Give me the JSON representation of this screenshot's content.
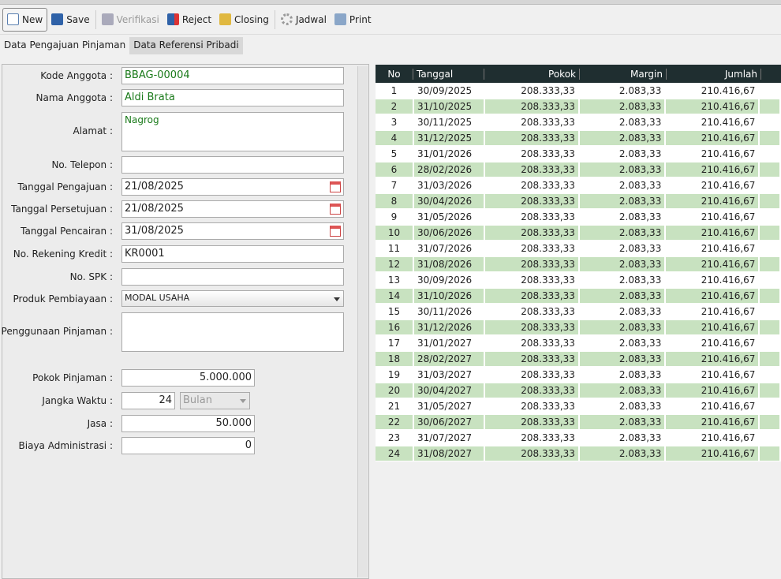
{
  "toolbar": {
    "new": "New",
    "save": "Save",
    "verifikasi": "Verifikasi",
    "reject": "Reject",
    "closing": "Closing",
    "jadwal": "Jadwal",
    "print": "Print"
  },
  "tabs": [
    "Data Pengajuan Pinjaman",
    "Data Referensi Pribadi"
  ],
  "form": {
    "kode_anggota": {
      "label": "Kode Anggota :",
      "value": "BBAG-00004"
    },
    "nama_anggota": {
      "label": "Nama Anggota :",
      "value": "Aldi Brata"
    },
    "alamat": {
      "label": "Alamat :",
      "value": "Nagrog"
    },
    "telepon": {
      "label": "No. Telepon :",
      "value": ""
    },
    "tgl_pengajuan": {
      "label": "Tanggal Pengajuan :",
      "value": "21/08/2025"
    },
    "tgl_persetujuan": {
      "label": "Tanggal Persetujuan :",
      "value": "21/08/2025"
    },
    "tgl_pencairan": {
      "label": "Tanggal Pencairan :",
      "value": "31/08/2025"
    },
    "rekening": {
      "label": "No. Rekening Kredit :",
      "value": "KR0001"
    },
    "spk": {
      "label": "No. SPK :",
      "value": ""
    },
    "produk": {
      "label": "Produk Pembiayaan :",
      "value": "MODAL USAHA"
    },
    "penggunaan": {
      "label": "Penggunaan Pinjaman :",
      "value": ""
    },
    "pokok": {
      "label": "Pokok Pinjaman :",
      "value": "5.000.000"
    },
    "jangka": {
      "label": "Jangka Waktu :",
      "value": "24",
      "unit": "Bulan"
    },
    "jasa": {
      "label": "Jasa :",
      "value": "50.000"
    },
    "biaya": {
      "label": "Biaya Administrasi :",
      "value": "0"
    }
  },
  "table": {
    "headers": [
      "No",
      "Tanggal",
      "Pokok",
      "Margin",
      "Jumlah"
    ],
    "rows": [
      [
        "1",
        "30/09/2025",
        "208.333,33",
        "2.083,33",
        "210.416,67"
      ],
      [
        "2",
        "31/10/2025",
        "208.333,33",
        "2.083,33",
        "210.416,67"
      ],
      [
        "3",
        "30/11/2025",
        "208.333,33",
        "2.083,33",
        "210.416,67"
      ],
      [
        "4",
        "31/12/2025",
        "208.333,33",
        "2.083,33",
        "210.416,67"
      ],
      [
        "5",
        "31/01/2026",
        "208.333,33",
        "2.083,33",
        "210.416,67"
      ],
      [
        "6",
        "28/02/2026",
        "208.333,33",
        "2.083,33",
        "210.416,67"
      ],
      [
        "7",
        "31/03/2026",
        "208.333,33",
        "2.083,33",
        "210.416,67"
      ],
      [
        "8",
        "30/04/2026",
        "208.333,33",
        "2.083,33",
        "210.416,67"
      ],
      [
        "9",
        "31/05/2026",
        "208.333,33",
        "2.083,33",
        "210.416,67"
      ],
      [
        "10",
        "30/06/2026",
        "208.333,33",
        "2.083,33",
        "210.416,67"
      ],
      [
        "11",
        "31/07/2026",
        "208.333,33",
        "2.083,33",
        "210.416,67"
      ],
      [
        "12",
        "31/08/2026",
        "208.333,33",
        "2.083,33",
        "210.416,67"
      ],
      [
        "13",
        "30/09/2026",
        "208.333,33",
        "2.083,33",
        "210.416,67"
      ],
      [
        "14",
        "31/10/2026",
        "208.333,33",
        "2.083,33",
        "210.416,67"
      ],
      [
        "15",
        "30/11/2026",
        "208.333,33",
        "2.083,33",
        "210.416,67"
      ],
      [
        "16",
        "31/12/2026",
        "208.333,33",
        "2.083,33",
        "210.416,67"
      ],
      [
        "17",
        "31/01/2027",
        "208.333,33",
        "2.083,33",
        "210.416,67"
      ],
      [
        "18",
        "28/02/2027",
        "208.333,33",
        "2.083,33",
        "210.416,67"
      ],
      [
        "19",
        "31/03/2027",
        "208.333,33",
        "2.083,33",
        "210.416,67"
      ],
      [
        "20",
        "30/04/2027",
        "208.333,33",
        "2.083,33",
        "210.416,67"
      ],
      [
        "21",
        "31/05/2027",
        "208.333,33",
        "2.083,33",
        "210.416,67"
      ],
      [
        "22",
        "30/06/2027",
        "208.333,33",
        "2.083,33",
        "210.416,67"
      ],
      [
        "23",
        "31/07/2027",
        "208.333,33",
        "2.083,33",
        "210.416,67"
      ],
      [
        "24",
        "31/08/2027",
        "208.333,33",
        "2.083,33",
        "210.416,67"
      ]
    ]
  }
}
